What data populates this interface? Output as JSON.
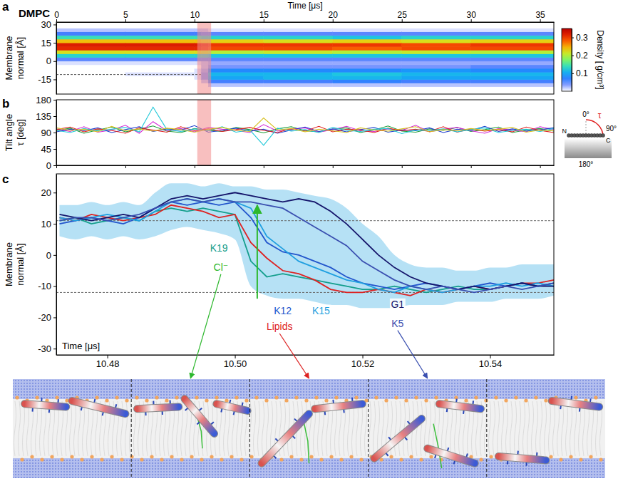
{
  "chart_data": [
    {
      "type": "heatmap",
      "panel": "a",
      "title": "DMPC",
      "x_label": "Time [μs]",
      "y_label": "Membrane normal [Å]",
      "xlim": [
        0,
        36
      ],
      "xticks": [
        0,
        5,
        10,
        15,
        20,
        25,
        30,
        35
      ],
      "ylim": [
        -27,
        32
      ],
      "yticks": [
        -15,
        0,
        15,
        30
      ],
      "x_edges": [
        0,
        5,
        10,
        10.5,
        11,
        15,
        20,
        25,
        30,
        36
      ],
      "y_edges": [
        -27,
        -24,
        -21,
        -18,
        -15,
        -12,
        -9,
        -6,
        -3,
        0,
        3,
        6,
        9,
        12,
        15,
        18,
        21,
        24,
        27,
        30
      ],
      "values": [
        [
          0,
          0,
          0,
          0,
          0,
          0,
          0,
          0,
          0.01,
          0.05,
          0.13,
          0.22,
          0.31,
          0.32,
          0.24,
          0.14,
          0.06,
          0.02,
          0
        ],
        [
          0,
          0,
          0,
          0,
          0,
          0.01,
          0,
          0,
          0.01,
          0.05,
          0.13,
          0.22,
          0.31,
          0.32,
          0.24,
          0.14,
          0.06,
          0.02,
          0
        ],
        [
          0,
          0,
          0,
          0,
          0.01,
          0.01,
          0.01,
          0,
          0.01,
          0.05,
          0.13,
          0.22,
          0.31,
          0.32,
          0.24,
          0.14,
          0.06,
          0.02,
          0
        ],
        [
          0,
          0,
          0,
          0.02,
          0.04,
          0.04,
          0.03,
          0.02,
          0.02,
          0.05,
          0.13,
          0.21,
          0.3,
          0.31,
          0.23,
          0.13,
          0.05,
          0.02,
          0
        ],
        [
          0,
          0,
          0.02,
          0.06,
          0.1,
          0.11,
          0.08,
          0.04,
          0.03,
          0.05,
          0.12,
          0.2,
          0.29,
          0.3,
          0.23,
          0.13,
          0.05,
          0.01,
          0
        ],
        [
          0,
          0,
          0.02,
          0.06,
          0.11,
          0.11,
          0.08,
          0.04,
          0.03,
          0.05,
          0.12,
          0.21,
          0.29,
          0.3,
          0.22,
          0.13,
          0.05,
          0.01,
          0
        ],
        [
          0,
          0,
          0.02,
          0.07,
          0.11,
          0.12,
          0.08,
          0.04,
          0.03,
          0.05,
          0.12,
          0.2,
          0.28,
          0.3,
          0.23,
          0.12,
          0.05,
          0.01,
          0
        ],
        [
          0,
          0,
          0.02,
          0.06,
          0.1,
          0.11,
          0.09,
          0.04,
          0.03,
          0.05,
          0.12,
          0.21,
          0.29,
          0.29,
          0.22,
          0.13,
          0.05,
          0.01,
          0
        ],
        [
          0,
          0,
          0.02,
          0.06,
          0.1,
          0.11,
          0.08,
          0.05,
          0.03,
          0.05,
          0.12,
          0.2,
          0.29,
          0.3,
          0.23,
          0.13,
          0.05,
          0.01,
          0
        ]
      ],
      "colorbar": {
        "label": "Density [ g/cm³]",
        "range": [
          0,
          0.35
        ],
        "ticks": [
          0.1,
          0.2,
          0.3
        ]
      },
      "highlight": [
        10.2,
        11.2
      ],
      "reference_lines": [
        {
          "y": -11,
          "x": [
            0,
            10.5
          ]
        }
      ]
    },
    {
      "type": "line",
      "panel": "b",
      "y_label": "Tilt angle τ [deg]",
      "xlim": [
        0,
        36
      ],
      "xticks": [
        0,
        5,
        10,
        15,
        20,
        25,
        30,
        35
      ],
      "ylim": [
        0,
        180
      ],
      "yticks": [
        0,
        45,
        90,
        135,
        180
      ],
      "tick_labels": "y",
      "x": [
        0,
        1,
        2,
        3,
        4,
        5,
        6,
        7,
        8,
        9,
        10,
        11,
        12,
        13,
        14,
        15,
        16,
        17,
        18,
        19,
        20,
        21,
        22,
        23,
        24,
        25,
        26,
        27,
        28,
        29,
        30,
        31,
        32,
        33,
        34,
        35,
        36
      ],
      "series": [
        {
          "color": "#1f9e3a",
          "values": [
            95,
            102,
            88,
            97,
            105,
            92,
            99,
            108,
            94,
            90,
            101,
            96,
            93,
            104,
            98,
            89,
            100,
            106,
            95,
            92,
            99,
            103,
            90,
            97,
            108,
            94,
            91,
            100,
            96,
            104,
            93,
            98,
            105,
            90,
            97,
            101,
            94
          ]
        },
        {
          "color": "#d62ad6",
          "values": [
            100,
            93,
            106,
            91,
            97,
            110,
            88,
            120,
            95,
            101,
            92,
            104,
            99,
            96,
            90,
            112,
            94,
            99,
            103,
            91,
            98,
            107,
            95,
            93,
            100,
            96,
            110,
            92,
            99,
            104,
            95,
            88,
            101,
            97,
            92,
            106,
            98
          ]
        },
        {
          "color": "#2040d0",
          "values": [
            92,
            99,
            95,
            103,
            90,
            98,
            106,
            93,
            100,
            97,
            109,
            91,
            96,
            102,
            94,
            99,
            88,
            97,
            105,
            93,
            100,
            92,
            98,
            104,
            91,
            97,
            95,
            103,
            90,
            99,
            96,
            107,
            93,
            100,
            94,
            98,
            103
          ]
        },
        {
          "color": "#e02020",
          "values": [
            98,
            105,
            92,
            100,
            96,
            88,
            103,
            97,
            91,
            106,
            95,
            100,
            93,
            98,
            104,
            96,
            90,
            101,
            94,
            107,
            92,
            99,
            97,
            90,
            102,
            95,
            99,
            93,
            106,
            91,
            100,
            94,
            98,
            92,
            105,
            96,
            90
          ]
        },
        {
          "color": "#20c8d8",
          "values": [
            96,
            90,
            101,
            94,
            99,
            104,
            92,
            160,
            98,
            93,
            100,
            95,
            106,
            91,
            97,
            55,
            102,
            94,
            98,
            90,
            104,
            96,
            93,
            99,
            101,
            87,
            97,
            95,
            100,
            92,
            98,
            103,
            90,
            96,
            99,
            93,
            101
          ]
        },
        {
          "color": "#d8c020",
          "values": [
            103,
            96,
            99,
            92,
            107,
            95,
            100,
            94,
            102,
            98,
            91,
            99,
            104,
            96,
            93,
            130,
            97,
            101,
            92,
            99,
            95,
            90,
            103,
            97,
            94,
            100,
            106,
            92,
            98,
            95,
            101,
            96,
            99,
            104,
            91,
            97,
            95
          ]
        }
      ],
      "highlight": [
        10.2,
        11.2
      ],
      "inset": {
        "labels": [
          "0°",
          "90°",
          "180°"
        ],
        "angle": "τ",
        "termini": [
          "N",
          "C"
        ]
      }
    },
    {
      "type": "line",
      "panel": "c",
      "x_label": "Time [μs]",
      "y_label": "Membrane normal [Å]",
      "xlim": [
        10.472,
        10.55
      ],
      "xticks": [
        10.48,
        {
          "value": 10.5,
          "label": "10.50"
        },
        10.52,
        10.54
      ],
      "ylim": [
        -32,
        26
      ],
      "yticks": [
        -30,
        -20,
        -10,
        0,
        10,
        20
      ],
      "x": [
        10.4725,
        10.475,
        10.4775,
        10.48,
        10.4825,
        10.485,
        10.4875,
        10.49,
        10.4925,
        10.495,
        10.4975,
        10.5,
        10.5025,
        10.505,
        10.5075,
        10.51,
        10.5125,
        10.515,
        10.5175,
        10.52,
        10.5225,
        10.525,
        10.5275,
        10.53,
        10.5325,
        10.535,
        10.5375,
        10.54,
        10.5425,
        10.545,
        10.5475,
        10.55
      ],
      "band": {
        "lower": [
          6,
          5,
          6,
          5,
          6,
          5,
          6,
          8,
          9,
          8,
          7,
          5,
          -10,
          -13,
          -14,
          -14,
          -15,
          -16,
          -16,
          -17,
          -17,
          -17,
          -16,
          -16,
          -16,
          -15,
          -15,
          -15,
          -14,
          -14,
          -14,
          -13
        ],
        "upper": [
          16,
          16,
          17,
          16,
          17,
          16,
          20,
          23,
          23,
          22,
          23,
          22,
          22,
          21,
          21,
          20,
          19,
          18,
          15,
          10,
          6,
          0,
          -3,
          -4,
          -4,
          -5,
          -5,
          -4,
          -4,
          -3,
          -3,
          -3
        ]
      },
      "series": [
        {
          "color": "#139e8c",
          "values": [
            11,
            12,
            10,
            11,
            12,
            11,
            14,
            15,
            14,
            15,
            14,
            13,
            -2,
            -7,
            -6,
            -7,
            -8,
            -9,
            -10,
            -11,
            -11,
            -10,
            -11,
            -12,
            -11,
            -10,
            -11,
            -11,
            -10,
            -9,
            -10,
            -9
          ]
        },
        {
          "color": "#dd2222",
          "values": [
            12,
            11,
            13,
            12,
            11,
            12,
            13,
            16,
            15,
            14,
            12,
            13,
            4,
            -1,
            -5,
            -6,
            -8,
            -11,
            -12,
            -12,
            -11,
            -12,
            -13,
            -11,
            -12,
            -11,
            -10,
            -11,
            -10,
            -9,
            -9,
            -8
          ]
        },
        {
          "color": "#2255cc",
          "values": [
            10,
            11,
            12,
            11,
            10,
            12,
            15,
            17,
            16,
            17,
            16,
            17,
            12,
            4,
            1,
            0,
            -2,
            -4,
            -7,
            -9,
            -10,
            -11,
            -10,
            -9,
            -10,
            -11,
            -10,
            -9,
            -10,
            -9,
            -10,
            -9
          ]
        },
        {
          "color": "#1f9fe0",
          "values": [
            12,
            11,
            12,
            13,
            12,
            11,
            14,
            17,
            18,
            17,
            18,
            17,
            15,
            6,
            2,
            -2,
            -4,
            -6,
            -8,
            -9,
            -11,
            -12,
            -10,
            -11,
            -12,
            -11,
            -10,
            -10,
            -9,
            -10,
            -9,
            -10
          ]
        },
        {
          "color": "#15156b",
          "values": [
            13,
            12,
            11,
            12,
            13,
            12,
            15,
            18,
            19,
            18,
            19,
            20,
            19,
            18,
            17,
            18,
            17,
            14,
            10,
            5,
            0,
            -4,
            -7,
            -9,
            -10,
            -11,
            -10,
            -11,
            -10,
            -9,
            -10,
            -10
          ]
        },
        {
          "color": "#3a4fb0",
          "values": [
            11,
            12,
            12,
            11,
            12,
            13,
            15,
            17,
            18,
            17,
            18,
            17,
            17,
            16,
            15,
            12,
            9,
            6,
            3,
            -2,
            -5,
            -8,
            -10,
            -11,
            -10,
            -11,
            -12,
            -11,
            -10,
            -11,
            -10,
            -9
          ]
        }
      ],
      "reference_lines": [
        {
          "y": 11
        },
        {
          "y": -12
        }
      ],
      "arrows": [
        {
          "x": 10.5035,
          "y": [
            -14,
            16
          ],
          "color": "#2db82d"
        }
      ],
      "annotations": [
        {
          "text": "K19",
          "x": 10.4975,
          "y": 1,
          "color": "#139e8c"
        },
        {
          "text": "Cl⁻",
          "x": 10.4978,
          "y": -5,
          "color": "#2db82d"
        },
        {
          "text": "K12",
          "x": 10.5075,
          "y": -19,
          "color": "#2255cc"
        },
        {
          "text": "K15",
          "x": 10.5135,
          "y": -19,
          "color": "#1f9fe0"
        },
        {
          "text": "Lipids",
          "x": 10.507,
          "y": -24,
          "color": "#dd2222"
        },
        {
          "text": "G1",
          "x": 10.5255,
          "y": -17,
          "color": "#15156b"
        },
        {
          "text": "K5",
          "x": 10.5255,
          "y": -23,
          "color": "#3a4fb0"
        }
      ]
    }
  ]
}
